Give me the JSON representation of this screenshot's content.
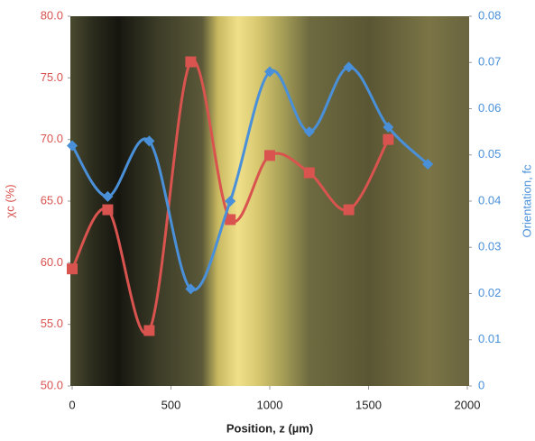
{
  "chart_data": {
    "type": "line",
    "xlabel": "Position, z (µm)",
    "ylabel": "χc (%)",
    "y2label": "Orientation, fc",
    "xlim": [
      0,
      2000
    ],
    "xticks": [
      0,
      500,
      1000,
      1500,
      2000
    ],
    "ylim": [
      50,
      80
    ],
    "yticks": [
      {
        "value": 50,
        "label": "50.0"
      },
      {
        "value": 55,
        "label": "55.0"
      },
      {
        "value": 60,
        "label": "60.0"
      },
      {
        "value": 65,
        "label": "65.0"
      },
      {
        "value": 70,
        "label": "70.0"
      },
      {
        "value": 75,
        "label": "75.0"
      },
      {
        "value": 80,
        "label": "80.0"
      }
    ],
    "y2lim": [
      0,
      0.08
    ],
    "y2ticks": [
      0,
      0.01,
      0.02,
      0.03,
      0.04,
      0.05,
      0.06,
      0.07,
      0.08
    ],
    "series": [
      {
        "color": "#d9534f",
        "marker": "square",
        "x": [
          0,
          180,
          390,
          600,
          800,
          1000,
          1200,
          1400,
          1600
        ],
        "values": [
          59.5,
          64.3,
          54.5,
          76.3,
          63.5,
          68.7,
          67.3,
          64.3,
          70.0
        ]
      },
      {
        "color": "#4a90d9",
        "marker": "diamond",
        "axis": "y2",
        "x": [
          0,
          180,
          390,
          600,
          800,
          1000,
          1200,
          1400,
          1600,
          1800
        ],
        "values": [
          0.052,
          0.041,
          0.053,
          0.021,
          0.04,
          0.068,
          0.055,
          0.069,
          0.056,
          0.048
        ]
      }
    ]
  }
}
